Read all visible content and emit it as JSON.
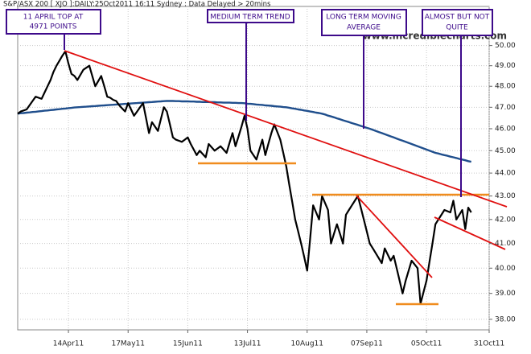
{
  "chart_data": {
    "type": "line",
    "title": "S&P/ASX 200 [ XJO ]:DAILY:25Oct2011 16:11 Sydney : Data Delayed > 20mins",
    "watermark": "www.incrediblecharts.com",
    "log_scale": true,
    "grid": true,
    "ylim": [
      37.6,
      52.0
    ],
    "yticks": [
      {
        "value": 38,
        "label": "38.00"
      },
      {
        "value": 39,
        "label": "39.00"
      },
      {
        "value": 40,
        "label": "40.00"
      },
      {
        "value": 41,
        "label": "41.00"
      },
      {
        "value": 42,
        "label": "42.00"
      },
      {
        "value": 43,
        "label": "43.00"
      },
      {
        "value": 44,
        "label": "44.00"
      },
      {
        "value": 45,
        "label": "45.00"
      },
      {
        "value": 46,
        "label": "46.00"
      },
      {
        "value": 47,
        "label": "47.00"
      },
      {
        "value": 48,
        "label": "48.00"
      },
      {
        "value": 49,
        "label": "49.00"
      },
      {
        "value": 50,
        "label": "50.00"
      }
    ],
    "categories": [
      null,
      null,
      null,
      null,
      null,
      null,
      null,
      null,
      null,
      null,
      null,
      null,
      null,
      null,
      null,
      null,
      null,
      "14Apr11",
      null,
      null,
      null,
      null,
      null,
      null,
      null,
      null,
      null,
      null,
      null,
      null,
      null,
      null,
      null,
      null,
      null,
      null,
      null,
      "17May11",
      null,
      null,
      null,
      null,
      null,
      null,
      null,
      null,
      null,
      null,
      null,
      null,
      null,
      null,
      null,
      null,
      null,
      null,
      null,
      "15Jun11",
      null,
      null,
      null,
      null,
      null,
      null,
      null,
      null,
      null,
      null,
      null,
      null,
      null,
      null,
      null,
      null,
      null,
      null,
      null,
      "13Jul11",
      null,
      null,
      null,
      null,
      null,
      null,
      null,
      null,
      null,
      null,
      null,
      null,
      null,
      null,
      null,
      null,
      null,
      null,
      null,
      "10Aug11",
      null,
      null,
      null,
      null,
      null,
      null,
      null,
      null,
      null,
      null,
      null,
      null,
      null,
      null,
      null,
      null,
      null,
      null,
      null,
      "07Sep11",
      null,
      null,
      null,
      null,
      null,
      null,
      null,
      null,
      null,
      null,
      null,
      null,
      null,
      null,
      null,
      null,
      null,
      null,
      null,
      "05Oct11",
      null,
      null,
      null,
      null,
      null,
      null,
      null,
      null,
      null,
      null,
      null,
      null,
      null,
      null,
      null,
      null,
      null,
      null,
      null,
      null,
      "31Oct11"
    ],
    "series": [
      {
        "color": "#000000",
        "values": [
          46.7,
          46.8,
          46.85,
          46.9,
          47.1,
          47.3,
          47.5,
          47.45,
          47.4,
          47.7,
          48.0,
          48.3,
          48.7,
          49.0,
          49.25,
          49.5,
          49.71,
          49.1,
          48.6,
          48.5,
          48.3,
          48.55,
          48.8,
          48.9,
          49.0,
          48.5,
          48.0,
          48.25,
          48.5,
          48.0,
          47.5,
          47.45,
          47.35,
          47.3,
          47.1,
          46.95,
          46.8,
          47.2,
          46.9,
          46.6,
          46.8,
          47.0,
          47.2,
          46.5,
          45.8,
          46.3,
          46.1,
          45.9,
          46.45,
          47.0,
          46.8,
          46.2,
          45.6,
          45.5,
          45.45,
          45.4,
          45.5,
          45.6,
          45.3,
          45.05,
          44.8,
          45.0,
          44.85,
          44.7,
          45.3,
          45.15,
          45.0,
          45.1,
          45.2,
          45.05,
          44.9,
          45.35,
          45.8,
          45.2,
          45.65,
          46.1,
          46.6,
          46.0,
          45.0,
          44.8,
          44.6,
          45.05,
          45.5,
          44.8,
          45.3,
          45.8,
          46.2,
          45.85,
          45.5,
          44.9,
          44.3,
          43.5,
          42.75,
          42.0,
          41.5,
          41.0,
          40.45,
          39.9,
          41.2,
          42.6,
          42.3,
          42.0,
          43.0,
          42.7,
          42.4,
          41.0,
          41.4,
          41.8,
          41.4,
          41.0,
          42.2,
          42.4,
          42.6,
          42.8,
          43.0,
          42.5,
          42.0,
          41.5,
          41.0,
          40.8,
          40.6,
          40.4,
          40.2,
          40.8,
          40.55,
          40.3,
          40.5,
          40.0,
          39.5,
          39.0,
          39.5,
          39.9,
          40.3,
          40.15,
          40.0,
          38.6,
          39.05,
          39.5,
          40.25,
          41.0,
          41.8,
          42.0,
          42.2,
          42.4,
          42.35,
          42.3,
          42.8,
          42.0,
          42.2,
          42.4,
          41.6,
          42.5,
          42.3,
          null,
          null,
          null,
          null,
          null,
          null
        ]
      },
      {
        "color": "#1f4e8c",
        "values": [
          46.7,
          46.72,
          46.73,
          46.75,
          46.76,
          46.78,
          46.79,
          46.81,
          46.82,
          46.84,
          46.85,
          46.87,
          46.88,
          46.9,
          46.91,
          46.93,
          46.94,
          46.96,
          46.97,
          46.99,
          47.0,
          47.01,
          47.02,
          47.03,
          47.04,
          47.05,
          47.06,
          47.07,
          47.08,
          47.09,
          47.1,
          47.11,
          47.12,
          47.13,
          47.14,
          47.15,
          47.16,
          47.17,
          47.18,
          47.19,
          47.2,
          47.21,
          47.22,
          47.23,
          47.24,
          47.25,
          47.26,
          47.27,
          47.28,
          47.29,
          47.3,
          47.3,
          47.3,
          47.29,
          47.29,
          47.28,
          47.28,
          47.28,
          47.27,
          47.27,
          47.26,
          47.26,
          47.25,
          47.25,
          47.25,
          47.24,
          47.24,
          47.23,
          47.23,
          47.22,
          47.22,
          47.22,
          47.21,
          47.21,
          47.2,
          47.2,
          47.19,
          47.17,
          47.16,
          47.15,
          47.13,
          47.12,
          47.11,
          47.09,
          47.08,
          47.07,
          47.05,
          47.04,
          47.03,
          47.01,
          47.0,
          46.98,
          46.95,
          46.93,
          46.9,
          46.88,
          46.85,
          46.83,
          46.8,
          46.78,
          46.75,
          46.73,
          46.7,
          46.66,
          46.61,
          46.57,
          46.53,
          46.48,
          46.44,
          46.39,
          46.35,
          46.31,
          46.26,
          46.22,
          46.18,
          46.13,
          46.09,
          46.04,
          46.0,
          45.95,
          45.9,
          45.85,
          45.8,
          45.75,
          45.7,
          45.65,
          45.6,
          45.55,
          45.5,
          45.45,
          45.4,
          45.35,
          45.3,
          45.25,
          45.2,
          45.15,
          45.1,
          45.05,
          45.0,
          44.95,
          44.9,
          44.87,
          44.83,
          44.8,
          44.77,
          44.73,
          44.7,
          44.67,
          44.63,
          44.6,
          44.57,
          44.53,
          44.5,
          null,
          null,
          null,
          null,
          null,
          null
        ]
      }
    ],
    "annotations": [
      {
        "lines": [
          "11 APRIL TOP AT",
          "4971 POINTS"
        ]
      },
      {
        "lines": [
          "MEDIUM TERM TREND"
        ]
      },
      {
        "lines": [
          "LONG TERM MOVING",
          "AVERAGE"
        ]
      },
      {
        "lines": [
          "ALMOST BUT NOT",
          "QUITE"
        ]
      }
    ]
  }
}
